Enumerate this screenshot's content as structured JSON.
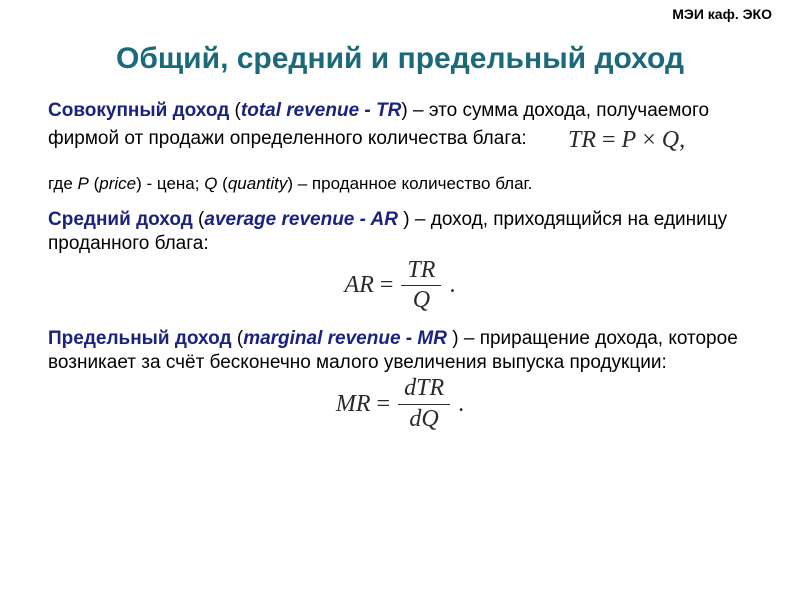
{
  "header": "МЭИ каф. ЭКО",
  "title": "Общий, средний и предельный доход",
  "sec1": {
    "term_ru": "Совокупный доход",
    "open": " (",
    "term_en": "total revenue - TR",
    "close": ")",
    "rest": " – это сумма дохода, получаемого фирмой от продажи определенного количества блага:"
  },
  "formula1": {
    "lhs": "TR",
    "eq": " = ",
    "r1": "P",
    "times": " × ",
    "r2": "Q",
    "comma": ","
  },
  "note_parts": {
    "p1": "где ",
    "P": "P",
    "p2": " (",
    "price": "price",
    "p3": ") - цена; ",
    "Q": "Q",
    "p4": " (",
    "quantity": "quantity",
    "p5": ") – проданное количество благ."
  },
  "sec2": {
    "term_ru": "Средний доход",
    "open": " (",
    "term_en": "average revenue - AR ",
    "close": ")",
    "rest": " – доход, приходящийся на единицу проданного блага:"
  },
  "formula2": {
    "lhs": "AR",
    "eq": "=",
    "num": "TR",
    "den": "Q",
    "dot": "."
  },
  "sec3": {
    "term_ru": "Предельный доход",
    "open": " (",
    "term_en": "marginal revenue - MR ",
    "close": ")",
    "rest": " – приращение дохода, которое возникает за счёт бесконечно малого увеличения выпуска продукции:"
  },
  "formula3": {
    "lhs": "MR",
    "eq": "=",
    "num": "dTR",
    "den": "dQ",
    "dot": "."
  }
}
